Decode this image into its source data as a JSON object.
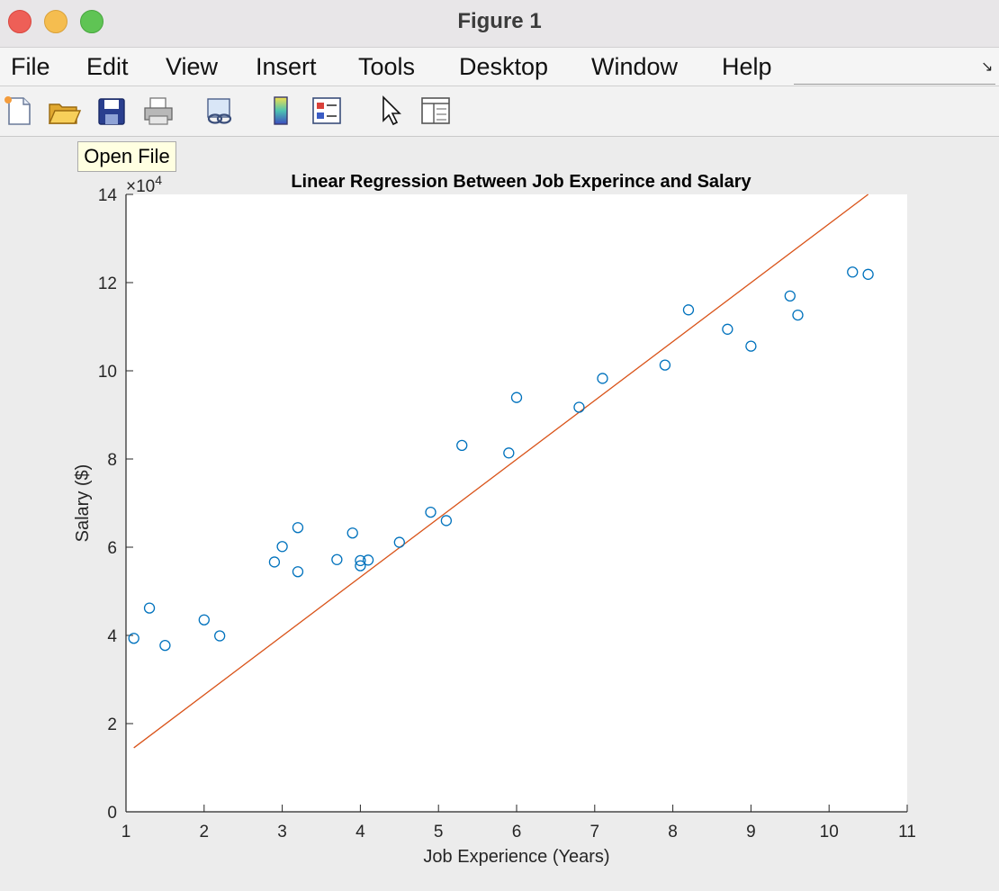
{
  "window": {
    "title": "Figure 1"
  },
  "menu": [
    "File",
    "Edit",
    "View",
    "Insert",
    "Tools",
    "Desktop",
    "Window",
    "Help"
  ],
  "toolbar": {
    "icons": [
      "new-figure-icon",
      "open-file-icon",
      "save-icon",
      "print-icon",
      "link-plot-icon",
      "insert-colorbar-icon",
      "insert-legend-icon",
      "edit-plot-icon",
      "property-inspector-icon"
    ],
    "tooltip": "Open File"
  },
  "chart_data": {
    "type": "scatter",
    "title": "Linear Regression Between Job Experince and Salary",
    "xlabel": "Job Experience (Years)",
    "ylabel": "Salary ($)",
    "xlim": [
      1,
      11
    ],
    "ylim": [
      0,
      140000
    ],
    "y_exponent_label": "×10",
    "y_exponent_power": "4",
    "x_ticks": [
      1,
      2,
      3,
      4,
      5,
      6,
      7,
      8,
      9,
      10,
      11
    ],
    "x_tick_labels": [
      "1",
      "2",
      "3",
      "4",
      "5",
      "6",
      "7",
      "8",
      "9",
      "10",
      "11"
    ],
    "y_ticks": [
      0,
      20000,
      40000,
      60000,
      80000,
      100000,
      120000,
      140000
    ],
    "y_tick_labels": [
      "0",
      "2",
      "4",
      "6",
      "8",
      "10",
      "12",
      "14"
    ],
    "grid": false,
    "colors": {
      "points": "#0072BD",
      "line": "#D95319"
    },
    "series": [
      {
        "type": "scatter",
        "x": [
          1.1,
          1.3,
          1.5,
          2.0,
          2.2,
          2.9,
          3.0,
          3.2,
          3.2,
          3.7,
          3.9,
          4.0,
          4.0,
          4.1,
          4.5,
          4.9,
          5.1,
          5.3,
          5.9,
          6.0,
          6.8,
          7.1,
          7.9,
          8.2,
          8.7,
          9.0,
          9.5,
          9.6,
          10.3,
          10.5
        ],
        "y": [
          39343,
          46205,
          37731,
          43525,
          39891,
          56642,
          60150,
          54445,
          64445,
          57189,
          63218,
          55794,
          56957,
          57081,
          61111,
          67938,
          66029,
          83088,
          81363,
          93940,
          91738,
          98273,
          101302,
          113812,
          109431,
          105582,
          116969,
          112635,
          122391,
          121872
        ]
      },
      {
        "type": "line",
        "x": [
          1.1,
          10.5
        ],
        "y": [
          14500,
          140000
        ]
      }
    ]
  }
}
